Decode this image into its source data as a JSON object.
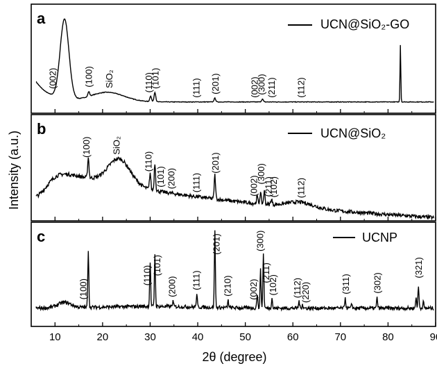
{
  "chart_data": {
    "type": "line",
    "xlabel": "2θ (degree)",
    "ylabel": "Intensity (a.u.)",
    "xlim": [
      5,
      90
    ],
    "x_ticks": [
      "10",
      "20",
      "30",
      "40",
      "50",
      "60",
      "70",
      "80",
      "90"
    ],
    "grid": false,
    "legend_placement": "top-right",
    "panels": [
      {
        "letter": "a",
        "legend": "UCN@SiO₂-GO",
        "series_name": "UCN@SiO₂-GO",
        "annotations": [
          {
            "label": "(002)",
            "x": 9.6
          },
          {
            "label": "(100)",
            "x": 17.2
          },
          {
            "label": "SiO₂",
            "x": 21.5
          },
          {
            "label": "(110)",
            "x": 29.8
          },
          {
            "label": "(101)",
            "x": 31.2
          },
          {
            "label": "(111)",
            "x": 39.8
          },
          {
            "label": "(201)",
            "x": 43.8
          },
          {
            "label": "(002)",
            "x": 52.0
          },
          {
            "label": "(300)",
            "x": 53.5
          },
          {
            "label": "(211)",
            "x": 55.6
          },
          {
            "label": "(112)",
            "x": 61.8
          }
        ],
        "peaks": [
          {
            "x": 12.0,
            "h": 0.84,
            "w": 1.3
          },
          {
            "x": 17.1,
            "h": 0.05,
            "w": 0.25
          },
          {
            "x": 30.1,
            "h": 0.06,
            "w": 0.25
          },
          {
            "x": 31.0,
            "h": 0.1,
            "w": 0.25
          },
          {
            "x": 43.6,
            "h": 0.04,
            "w": 0.25
          },
          {
            "x": 53.6,
            "h": 0.03,
            "w": 0.25
          },
          {
            "x": 82.6,
            "h": 0.6,
            "w": 0.12
          }
        ]
      },
      {
        "letter": "b",
        "legend": "UCN@SiO₂",
        "series_name": "UCN@SiO₂",
        "annotations": [
          {
            "label": "(100)",
            "x": 16.7
          },
          {
            "label": "SiO₂",
            "x": 23.0
          },
          {
            "label": "(110)",
            "x": 29.7
          },
          {
            "label": "(101)",
            "x": 32.3
          },
          {
            "label": "(200)",
            "x": 34.5
          },
          {
            "label": "(111)",
            "x": 39.8
          },
          {
            "label": "(201)",
            "x": 43.8
          },
          {
            "label": "(002)",
            "x": 51.9
          },
          {
            "label": "(300)",
            "x": 53.4
          },
          {
            "label": "(211)",
            "x": 54.9
          },
          {
            "label": "(102)",
            "x": 56.0
          },
          {
            "label": "(112)",
            "x": 61.8
          }
        ],
        "peaks": [
          {
            "x": 17.0,
            "h": 0.22,
            "w": 0.2
          },
          {
            "x": 30.0,
            "h": 0.18,
            "w": 0.2
          },
          {
            "x": 31.0,
            "h": 0.3,
            "w": 0.2
          },
          {
            "x": 43.6,
            "h": 0.26,
            "w": 0.2
          },
          {
            "x": 52.5,
            "h": 0.08,
            "w": 0.2
          },
          {
            "x": 53.2,
            "h": 0.12,
            "w": 0.2
          },
          {
            "x": 54.0,
            "h": 0.14,
            "w": 0.2
          },
          {
            "x": 55.5,
            "h": 0.06,
            "w": 0.2
          }
        ]
      },
      {
        "letter": "c",
        "legend": "UCNP",
        "series_name": "UCNP",
        "annotations": [
          {
            "label": "(100)",
            "x": 16.0
          },
          {
            "label": "(110)",
            "x": 29.4
          },
          {
            "label": "(101)",
            "x": 31.5
          },
          {
            "label": "(200)",
            "x": 34.7
          },
          {
            "label": "(111)",
            "x": 39.8
          },
          {
            "label": "(201)",
            "x": 44.0
          },
          {
            "label": "(210)",
            "x": 46.3
          },
          {
            "label": "(002)",
            "x": 51.8
          },
          {
            "label": "(300)",
            "x": 53.2
          },
          {
            "label": "(211)",
            "x": 54.4
          },
          {
            "label": "(102)",
            "x": 55.9
          },
          {
            "label": "(112)",
            "x": 61.0
          },
          {
            "label": "(220)",
            "x": 62.7
          },
          {
            "label": "(311)",
            "x": 71.2
          },
          {
            "label": "(302)",
            "x": 77.8
          },
          {
            "label": "(321)",
            "x": 86.5
          }
        ],
        "peaks": [
          {
            "x": 17.0,
            "h": 0.64,
            "w": 0.15
          },
          {
            "x": 30.0,
            "h": 0.5,
            "w": 0.15
          },
          {
            "x": 31.0,
            "h": 0.58,
            "w": 0.15
          },
          {
            "x": 34.8,
            "h": 0.06,
            "w": 0.15
          },
          {
            "x": 39.8,
            "h": 0.14,
            "w": 0.15
          },
          {
            "x": 43.6,
            "h": 0.84,
            "w": 0.15
          },
          {
            "x": 46.4,
            "h": 0.08,
            "w": 0.15
          },
          {
            "x": 52.5,
            "h": 0.16,
            "w": 0.15
          },
          {
            "x": 53.2,
            "h": 0.42,
            "w": 0.15
          },
          {
            "x": 53.8,
            "h": 0.6,
            "w": 0.15
          },
          {
            "x": 55.6,
            "h": 0.12,
            "w": 0.15
          },
          {
            "x": 61.3,
            "h": 0.08,
            "w": 0.15
          },
          {
            "x": 62.0,
            "h": 0.05,
            "w": 0.15
          },
          {
            "x": 71.0,
            "h": 0.12,
            "w": 0.15
          },
          {
            "x": 72.4,
            "h": 0.05,
            "w": 0.15
          },
          {
            "x": 77.7,
            "h": 0.12,
            "w": 0.15
          },
          {
            "x": 85.9,
            "h": 0.12,
            "w": 0.15
          },
          {
            "x": 86.4,
            "h": 0.24,
            "w": 0.15
          },
          {
            "x": 87.4,
            "h": 0.08,
            "w": 0.15
          }
        ]
      }
    ]
  }
}
